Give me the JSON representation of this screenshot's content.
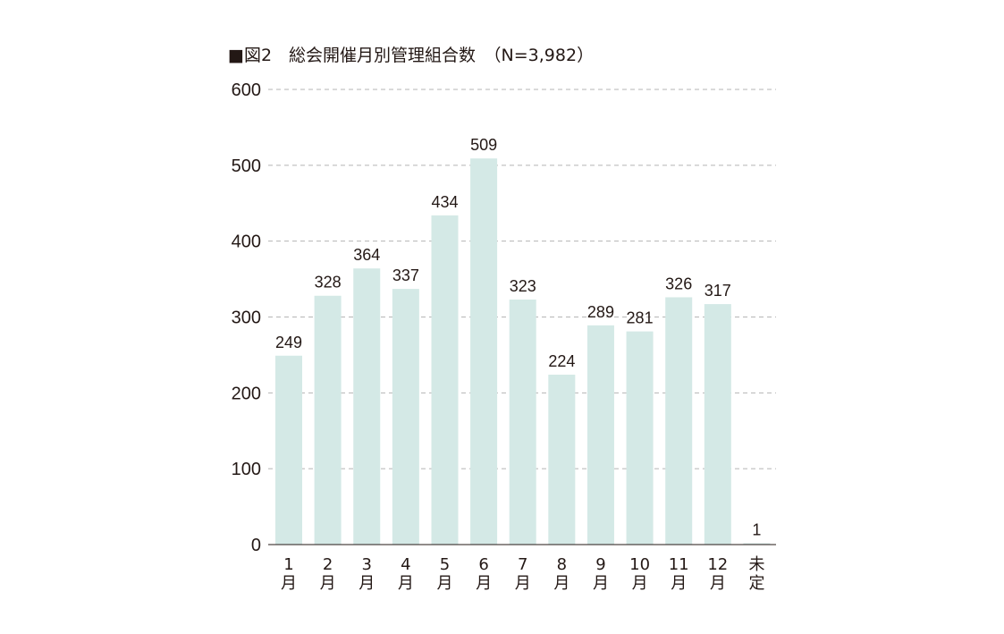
{
  "chart_data": {
    "type": "bar",
    "title": "■図2　総会開催月別管理組合数　（N=3,982）",
    "xlabel": "",
    "ylabel": "",
    "ylim": [
      0,
      600
    ],
    "yticks": [
      0,
      100,
      200,
      300,
      400,
      500,
      600
    ],
    "grid": true,
    "categories": [
      [
        "1",
        "月"
      ],
      [
        "2",
        "月"
      ],
      [
        "3",
        "月"
      ],
      [
        "4",
        "月"
      ],
      [
        "5",
        "月"
      ],
      [
        "6",
        "月"
      ],
      [
        "7",
        "月"
      ],
      [
        "8",
        "月"
      ],
      [
        "9",
        "月"
      ],
      [
        "10",
        "月"
      ],
      [
        "11",
        "月"
      ],
      [
        "12",
        "月"
      ],
      [
        "未",
        "定"
      ]
    ],
    "values": [
      249,
      328,
      364,
      337,
      434,
      509,
      323,
      224,
      289,
      281,
      326,
      317,
      1
    ],
    "bar_color": "#d4e9e6",
    "text_color": "#231815",
    "grid_color": "#b5b5b5"
  }
}
